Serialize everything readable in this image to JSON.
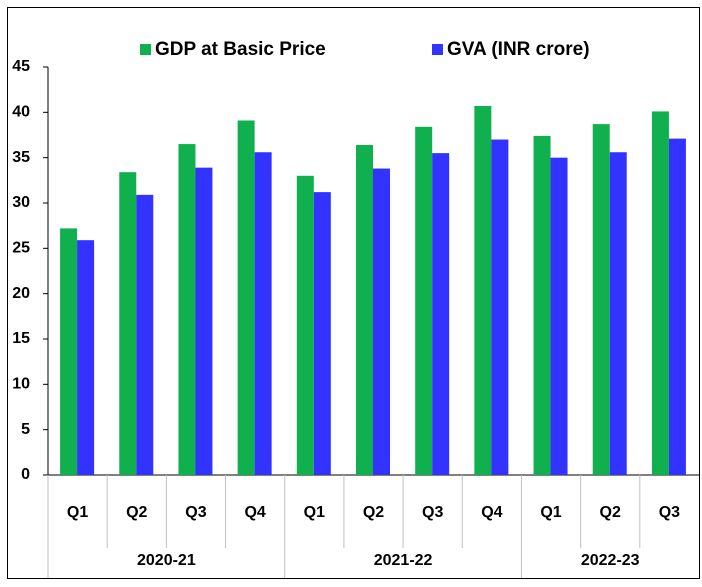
{
  "chart_data": {
    "type": "bar",
    "groups": [
      {
        "name": "2020-21",
        "categories": [
          "Q1",
          "Q2",
          "Q3",
          "Q4"
        ]
      },
      {
        "name": "2021-22",
        "categories": [
          "Q1",
          "Q2",
          "Q3",
          "Q4"
        ]
      },
      {
        "name": "2022-23",
        "categories": [
          "Q1",
          "Q2",
          "Q3"
        ]
      }
    ],
    "series": [
      {
        "name": "GDP at Basic Price",
        "color": "#11b04e",
        "values": [
          27.2,
          33.4,
          36.5,
          39.1,
          33.0,
          36.4,
          38.4,
          40.7,
          37.4,
          38.7,
          40.1
        ]
      },
      {
        "name": "GVA (INR crore)",
        "color": "#3333ff",
        "values": [
          25.9,
          30.9,
          33.9,
          35.6,
          31.2,
          33.8,
          35.5,
          37.0,
          35.0,
          35.6,
          37.1
        ]
      }
    ],
    "ylim": [
      0,
      45
    ],
    "yticks": [
      0,
      5,
      10,
      15,
      20,
      25,
      30,
      35,
      40,
      45
    ],
    "grid": false,
    "legend": "top"
  }
}
